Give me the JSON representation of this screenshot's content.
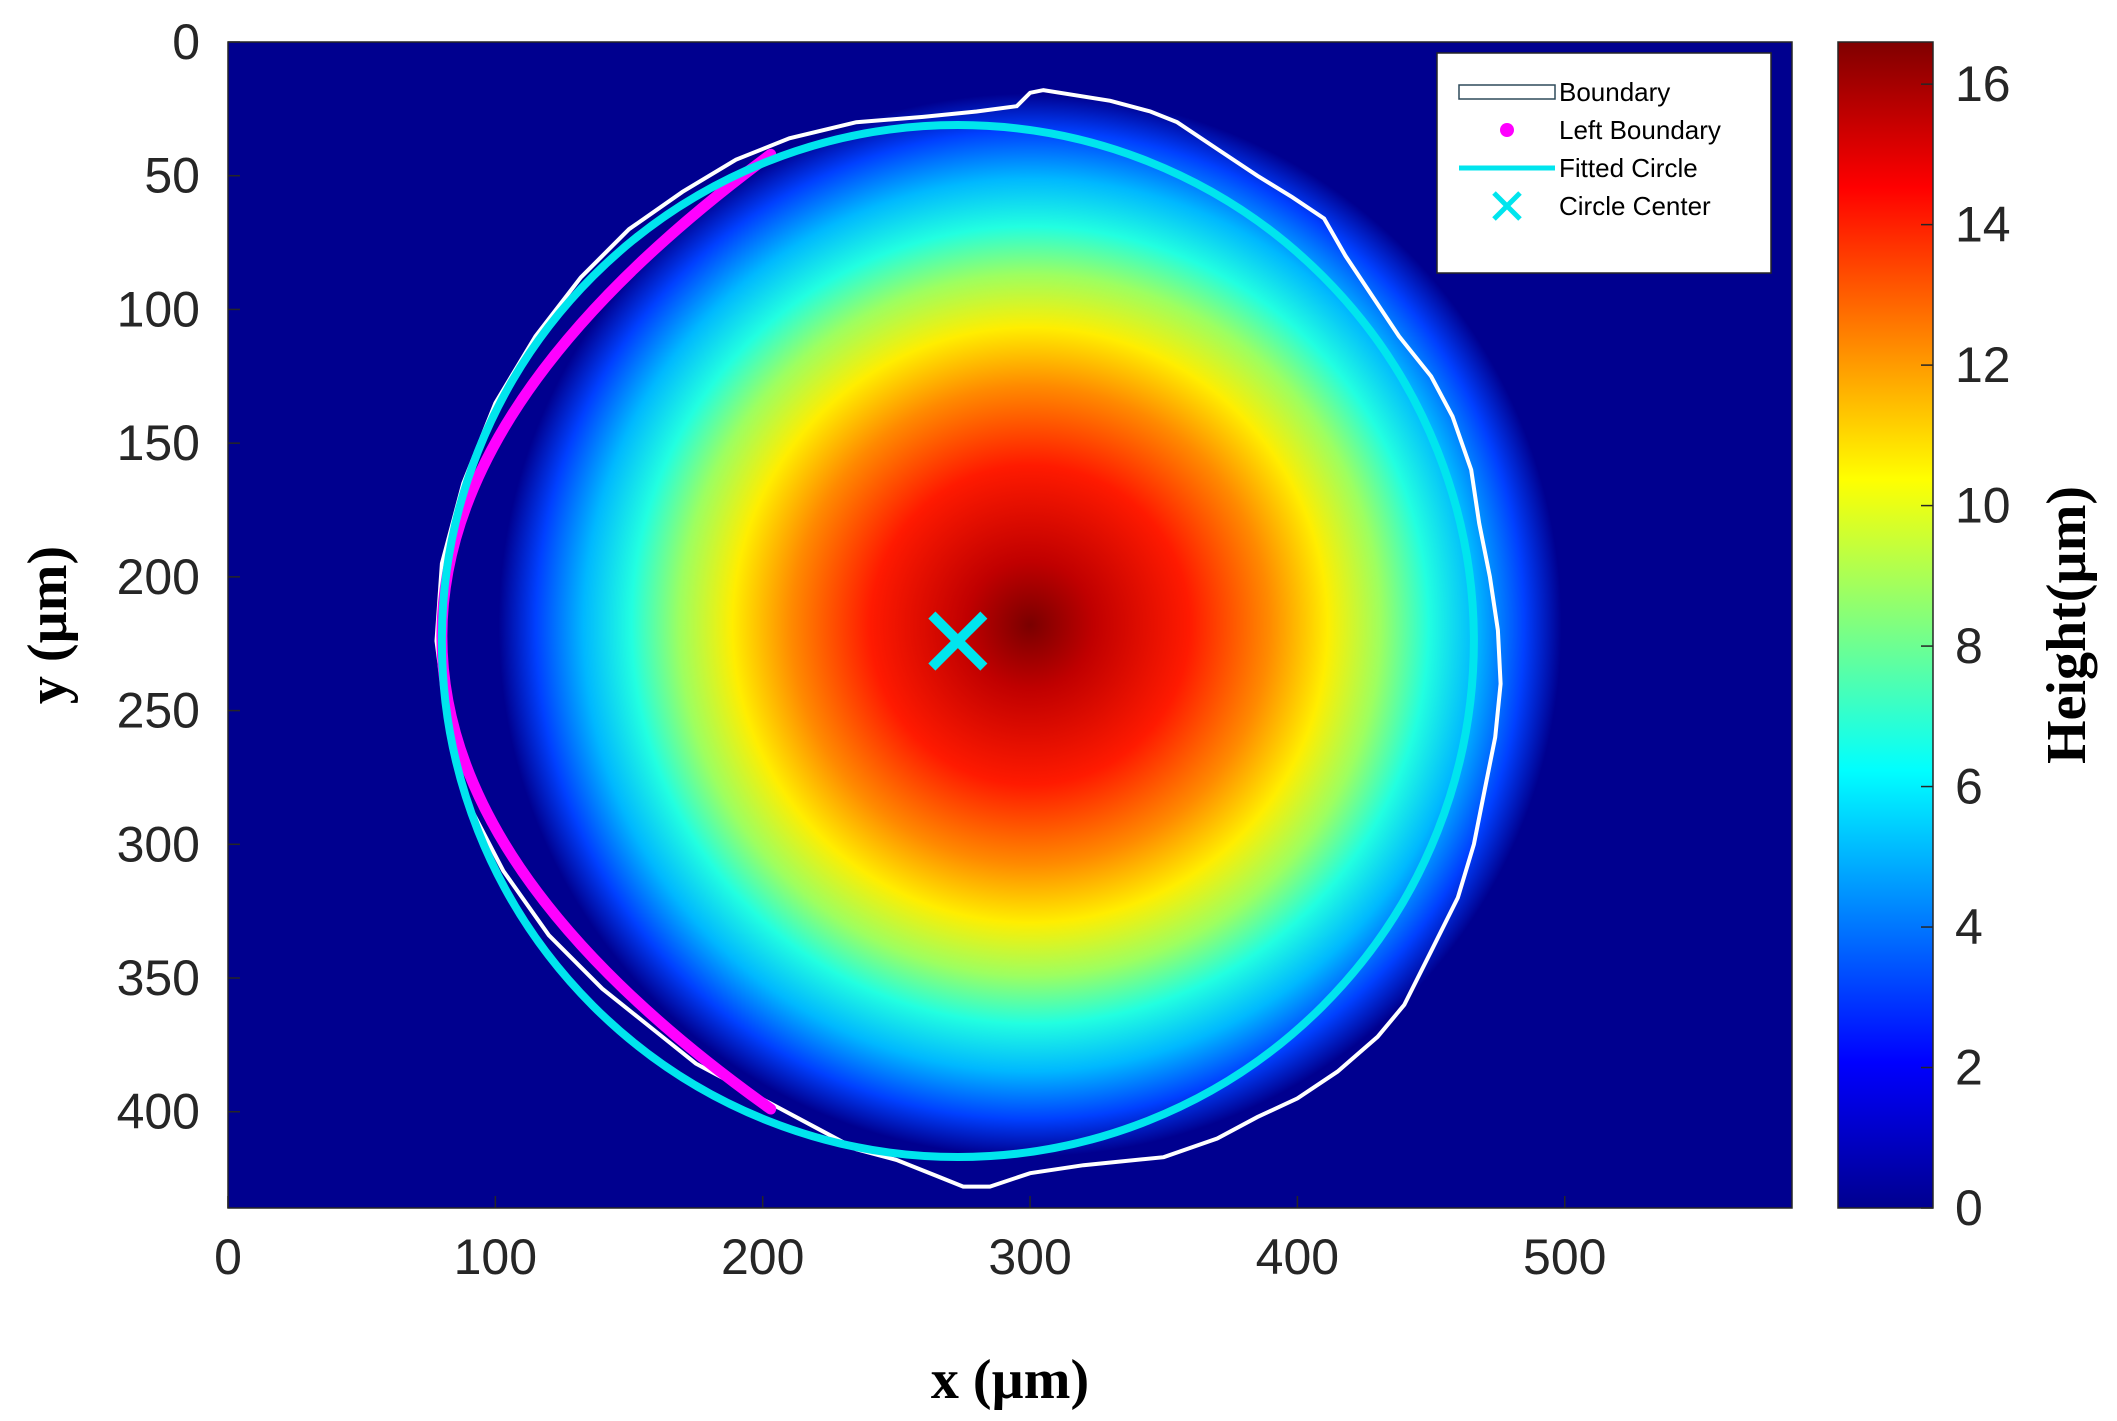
{
  "chart_data": {
    "type": "heatmap",
    "xlabel": "x (µm)",
    "ylabel": "y (µm)",
    "colorbar_label": "Height(µm)",
    "colormap": "jet",
    "xlim": [
      0,
      585
    ],
    "ylim": [
      0,
      436
    ],
    "y_reversed": true,
    "clim": [
      0,
      16.6
    ],
    "x_ticks": [
      "0",
      "100",
      "200",
      "300",
      "400",
      "500"
    ],
    "y_ticks": [
      "0",
      "50",
      "100",
      "150",
      "200",
      "250",
      "300",
      "350",
      "400"
    ],
    "colorbar_ticks": [
      "0",
      "2",
      "4",
      "6",
      "8",
      "10",
      "12",
      "14",
      "16"
    ],
    "legend_position": "top-right",
    "legend": [
      {
        "label": "Boundary",
        "marker": "rectangle-outline"
      },
      {
        "label": "Left Boundary",
        "marker": "dot"
      },
      {
        "label": "Fitted Circle",
        "marker": "line"
      },
      {
        "label": "Circle Center",
        "marker": "x"
      }
    ],
    "height_peak": {
      "x": 300,
      "y": 218,
      "value": 16.6
    },
    "fitted_circle": {
      "center_x": 273,
      "center_y": 224,
      "radius": 193
    },
    "circle_center": {
      "x": 273,
      "y": 224
    },
    "left_boundary_arc": {
      "from": [
        203,
        42
      ],
      "to": [
        203,
        399
      ],
      "through": [
        80,
        224
      ]
    },
    "boundary": [
      [
        300,
        19
      ],
      [
        305,
        18
      ],
      [
        330,
        22
      ],
      [
        345,
        26
      ],
      [
        355,
        30
      ],
      [
        370,
        40
      ],
      [
        385,
        50
      ],
      [
        398,
        58
      ],
      [
        410,
        66
      ],
      [
        418,
        80
      ],
      [
        428,
        95
      ],
      [
        438,
        110
      ],
      [
        450,
        125
      ],
      [
        458,
        140
      ],
      [
        465,
        160
      ],
      [
        468,
        180
      ],
      [
        472,
        200
      ],
      [
        475,
        220
      ],
      [
        476,
        240
      ],
      [
        474,
        260
      ],
      [
        470,
        280
      ],
      [
        466,
        300
      ],
      [
        460,
        320
      ],
      [
        450,
        340
      ],
      [
        440,
        360
      ],
      [
        430,
        372
      ],
      [
        415,
        385
      ],
      [
        400,
        395
      ],
      [
        385,
        402
      ],
      [
        370,
        410
      ],
      [
        350,
        417
      ],
      [
        320,
        420
      ],
      [
        300,
        423
      ],
      [
        285,
        428
      ],
      [
        275,
        428
      ],
      [
        265,
        424
      ],
      [
        250,
        418
      ],
      [
        235,
        414
      ],
      [
        220,
        406
      ],
      [
        205,
        398
      ],
      [
        190,
        390
      ],
      [
        175,
        382
      ],
      [
        160,
        370
      ],
      [
        140,
        354
      ],
      [
        120,
        334
      ],
      [
        103,
        310
      ],
      [
        90,
        285
      ],
      [
        82,
        255
      ],
      [
        78,
        224
      ],
      [
        80,
        195
      ],
      [
        88,
        165
      ],
      [
        100,
        135
      ],
      [
        115,
        110
      ],
      [
        132,
        88
      ],
      [
        150,
        70
      ],
      [
        170,
        56
      ],
      [
        190,
        44
      ],
      [
        210,
        36
      ],
      [
        235,
        30
      ],
      [
        260,
        28
      ],
      [
        280,
        26
      ],
      [
        295,
        24
      ]
    ],
    "colors": {
      "background": "#00008f",
      "boundary": "#ffffff",
      "left_boundary": "#ff00ff",
      "fitted_circle": "#00e5ee",
      "circle_center": "#00e5ee"
    }
  }
}
